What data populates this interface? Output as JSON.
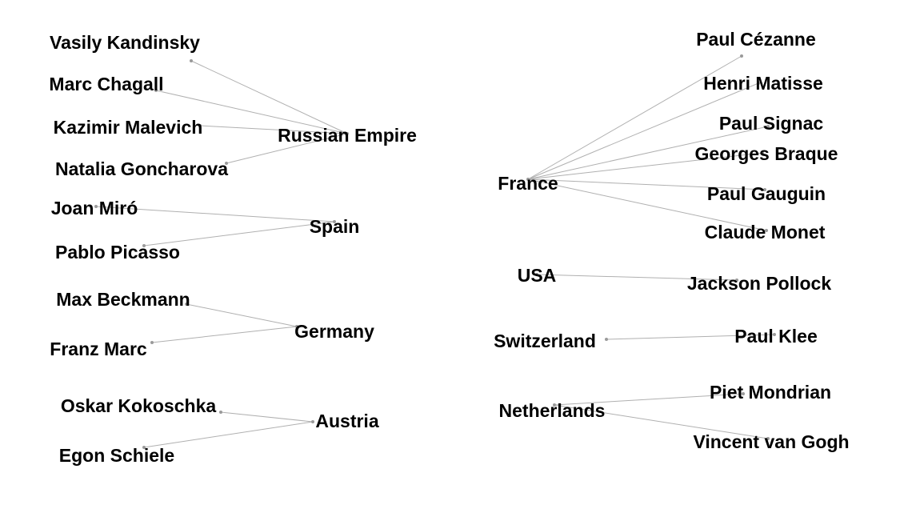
{
  "graph": {
    "groups": [
      {
        "country": "Russian Empire",
        "artists": [
          "Vasily Kandinsky",
          "Marc Chagall",
          "Kazimir Malevich",
          "Natalia Goncharova"
        ]
      },
      {
        "country": "Spain",
        "artists": [
          "Joan Miró",
          "Pablo Picasso"
        ]
      },
      {
        "country": "Germany",
        "artists": [
          "Max Beckmann",
          "Franz Marc"
        ]
      },
      {
        "country": "Austria",
        "artists": [
          "Oskar Kokoschka",
          "Egon Schiele"
        ]
      },
      {
        "country": "France",
        "artists": [
          "Paul Cézanne",
          "Henri Matisse",
          "Paul Signac",
          "Georges Braque",
          "Paul Gauguin",
          "Claude Monet"
        ]
      },
      {
        "country": "USA",
        "artists": [
          "Jackson Pollock"
        ]
      },
      {
        "country": "Switzerland",
        "artists": [
          "Paul Klee"
        ]
      },
      {
        "country": "Netherlands",
        "artists": [
          "Piet Mondrian",
          "Vincent van Gogh"
        ]
      }
    ],
    "edge_color": "#b0b0b0",
    "label_color": "#000000"
  }
}
